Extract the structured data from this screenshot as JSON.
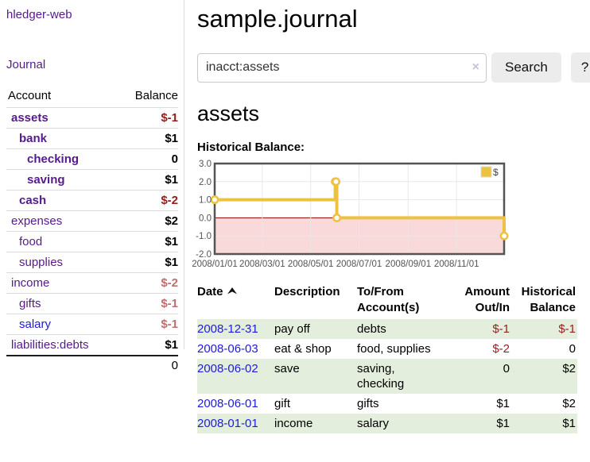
{
  "app": {
    "brand": "hledger-web",
    "nav_journal": "Journal"
  },
  "sidebar": {
    "accounts": {
      "col_account": "Account",
      "col_balance": "Balance",
      "rows": [
        {
          "name": "assets",
          "balance": "$-1",
          "indent": 0,
          "emphasized": true
        },
        {
          "name": "bank",
          "balance": "$1",
          "indent": 1,
          "emphasized": true
        },
        {
          "name": "checking",
          "balance": "0",
          "indent": 2,
          "emphasized": true
        },
        {
          "name": "saving",
          "balance": "$1",
          "indent": 2,
          "emphasized": true
        },
        {
          "name": "cash",
          "balance": "$-2",
          "indent": 1,
          "emphasized": true
        },
        {
          "name": "expenses",
          "balance": "$2",
          "indent": 0,
          "emphasized": false
        },
        {
          "name": "food",
          "balance": "$1",
          "indent": 1,
          "emphasized": false
        },
        {
          "name": "supplies",
          "balance": "$1",
          "indent": 1,
          "emphasized": false
        },
        {
          "name": "income",
          "balance": "$-2",
          "indent": 0,
          "emphasized": false
        },
        {
          "name": "gifts",
          "balance": "$-1",
          "indent": 1,
          "emphasized": false
        },
        {
          "name": "salary",
          "balance": "$-1",
          "indent": 1,
          "emphasized": false,
          "unvisited": true
        },
        {
          "name": "liabilities:debts",
          "balance": "$1",
          "indent": 0,
          "emphasized": false
        }
      ],
      "total": "0"
    }
  },
  "main": {
    "title": "sample.journal",
    "search": {
      "value": "inacct:assets",
      "clear_icon": "×",
      "search_button": "Search",
      "help_button": "?"
    },
    "account_heading": "assets",
    "chart_label": "Historical Balance:"
  },
  "chart_data": {
    "type": "line",
    "title": "Historical Balance",
    "steps": true,
    "series": [
      {
        "name": "$",
        "color": "#edc240",
        "points": [
          {
            "date": "2008-01-01",
            "day": 0,
            "value": 1
          },
          {
            "date": "2008-06-01",
            "day": 152,
            "value": 2
          },
          {
            "date": "2008-06-02",
            "day": 153,
            "value": 2
          },
          {
            "date": "2008-06-03",
            "day": 154,
            "value": 0
          },
          {
            "date": "2008-12-31",
            "day": 365,
            "value": -1
          }
        ]
      }
    ],
    "x_ticks": [
      {
        "day": 0,
        "label": "2008/01/01"
      },
      {
        "day": 60,
        "label": "2008/03/01"
      },
      {
        "day": 121,
        "label": "2008/05/01"
      },
      {
        "day": 182,
        "label": "2008/07/01"
      },
      {
        "day": 244,
        "label": "2008/09/01"
      },
      {
        "day": 305,
        "label": "2008/11/01"
      }
    ],
    "y_ticks": [
      3.0,
      2.0,
      1.0,
      0.0,
      -1.0,
      -2.0
    ],
    "ylim": [
      -2,
      3
    ],
    "xlim_days": [
      0,
      365
    ],
    "grid": true,
    "legend": {
      "label": "$",
      "position": "top-right"
    },
    "negative_region_color": "#f9d9d9",
    "zero_line_color": "#8b0000",
    "border_color": "#545454",
    "grid_color": "#e7e7e7"
  },
  "register": {
    "headers": [
      "Date",
      "Description",
      "To/From Account(s)",
      "Amount Out/In",
      "Historical Balance"
    ],
    "sort_icon": "caret-up",
    "rows": [
      {
        "date": "2008-12-31",
        "description": "pay off",
        "accounts": "debts",
        "amount": "$-1",
        "balance": "$-1"
      },
      {
        "date": "2008-06-03",
        "description": "eat & shop",
        "accounts": "food, supplies",
        "amount": "$-2",
        "balance": "0"
      },
      {
        "date": "2008-06-02",
        "description": "save",
        "accounts": "saving, checking",
        "amount": "0",
        "balance": "$2"
      },
      {
        "date": "2008-06-01",
        "description": "gift",
        "accounts": "gifts",
        "amount": "$1",
        "balance": "$2"
      },
      {
        "date": "2008-01-01",
        "description": "income",
        "accounts": "salary",
        "amount": "$1",
        "balance": "$1"
      }
    ]
  },
  "colors": {
    "link_purple": "#551a8b",
    "link_blue": "#1e1ae0",
    "negative_strong": "#94201d",
    "negative_soft": "#bd6f6f",
    "row_stripe_green": "#e3eedd",
    "button_gray": "#ececec"
  }
}
